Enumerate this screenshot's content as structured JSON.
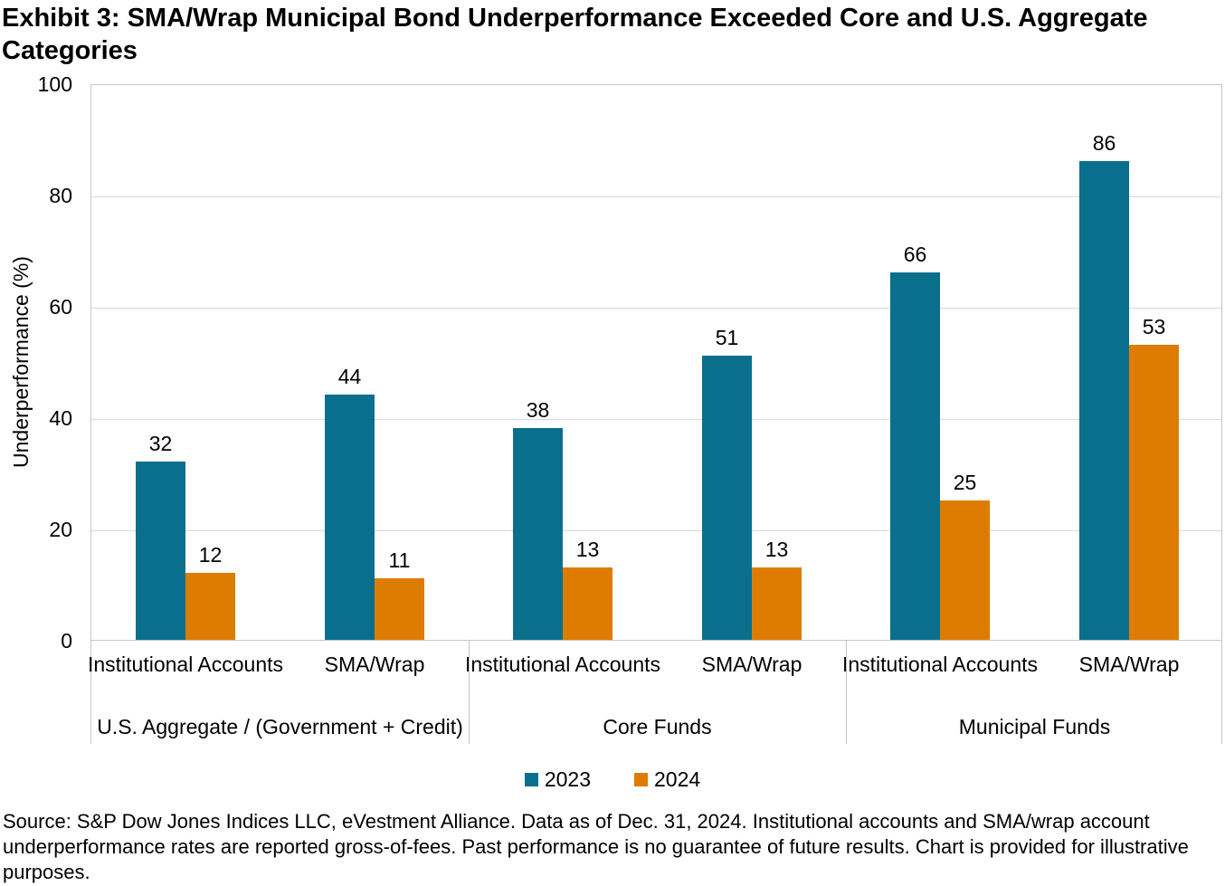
{
  "title": "Exhibit 3: SMA/Wrap Municipal Bond Underperformance Exceeded Core and U.S. Aggregate Categories",
  "source": "Source: S&P Dow Jones Indices LLC, eVestment Alliance. Data as of Dec. 31, 2024. Institutional accounts and SMA/wrap account underperformance rates are reported gross-of-fees. Past performance is no guarantee of future results. Chart is provided for illustrative purposes.",
  "chart_data": {
    "type": "bar",
    "title": "Exhibit 3: SMA/Wrap Municipal Bond Underperformance Exceeded Core and U.S. Aggregate Categories",
    "xlabel": "",
    "ylabel": "Underperformance (%)",
    "ylim": [
      0,
      100
    ],
    "yticks": [
      0,
      20,
      40,
      60,
      80,
      100
    ],
    "grid": true,
    "legend_position": "bottom",
    "groups": [
      {
        "label": "U.S. Aggregate / (Government + Credit)",
        "categories": [
          "Institutional Accounts",
          "SMA/Wrap"
        ]
      },
      {
        "label": "Core Funds",
        "categories": [
          "Institutional Accounts",
          "SMA/Wrap"
        ]
      },
      {
        "label": "Municipal Funds",
        "categories": [
          "Institutional Accounts",
          "SMA/Wrap"
        ]
      }
    ],
    "series": [
      {
        "name": "2023",
        "color": "#0A6F8D",
        "values": [
          32,
          44,
          38,
          51,
          66,
          86
        ]
      },
      {
        "name": "2024",
        "color": "#DE7C02",
        "values": [
          12,
          11,
          13,
          13,
          25,
          53
        ]
      }
    ],
    "gridline_color": "#d9d9d9"
  }
}
